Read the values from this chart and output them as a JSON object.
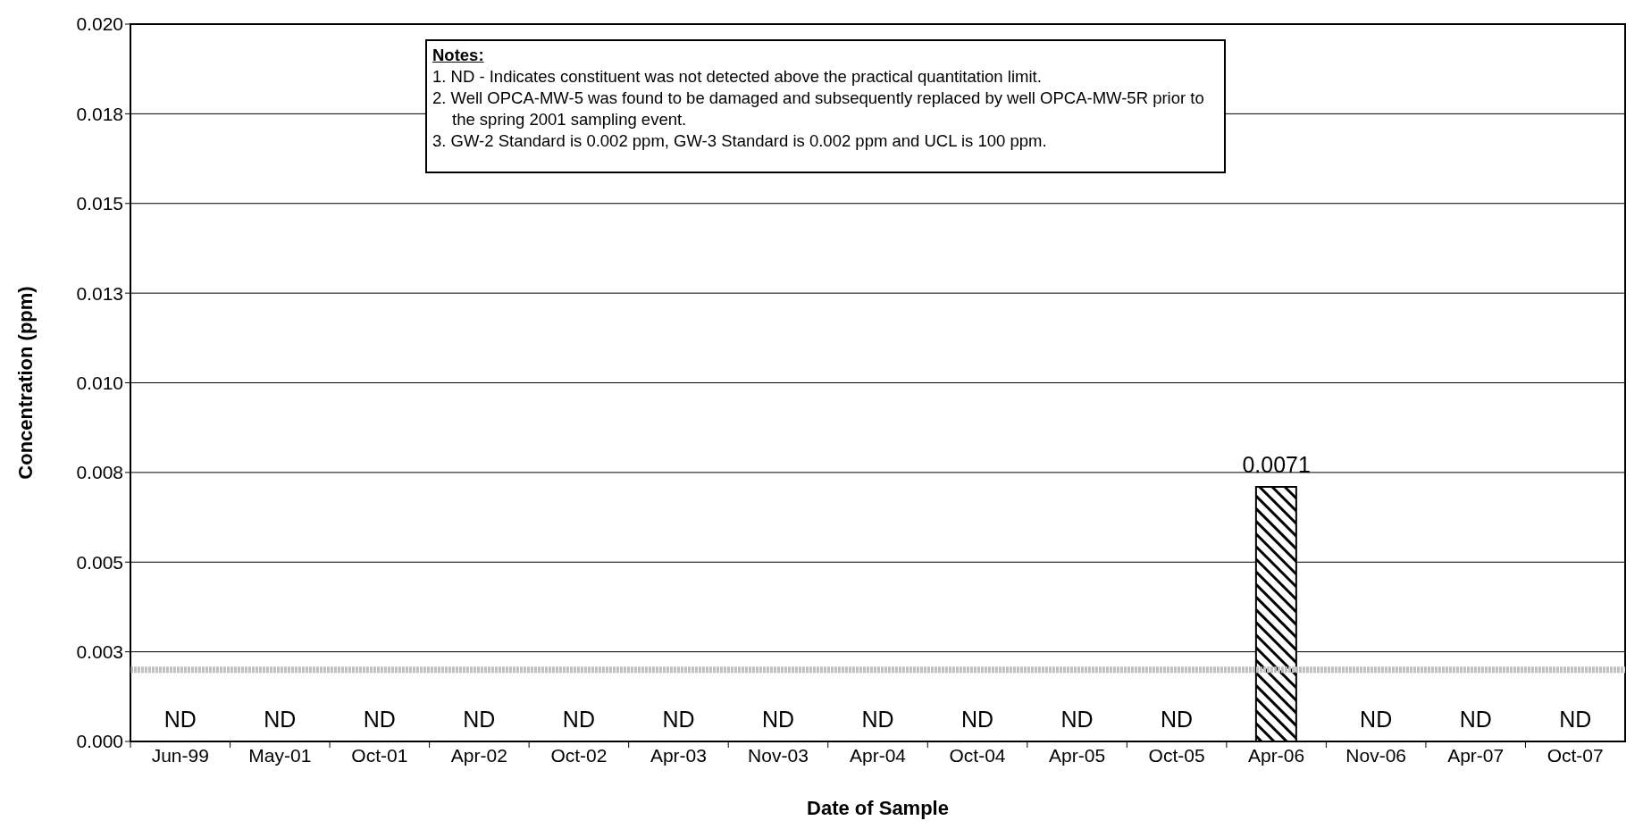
{
  "chart_data": {
    "type": "bar",
    "xlabel": "Date of Sample",
    "ylabel": "Concentration (ppm)",
    "categories": [
      "Jun-99",
      "May-01",
      "Oct-01",
      "Apr-02",
      "Oct-02",
      "Apr-03",
      "Nov-03",
      "Apr-04",
      "Oct-04",
      "Apr-05",
      "Oct-05",
      "Apr-06",
      "Nov-06",
      "Apr-07",
      "Oct-07"
    ],
    "values": [
      null,
      null,
      null,
      null,
      null,
      null,
      null,
      null,
      null,
      null,
      null,
      0.0071,
      null,
      null,
      null
    ],
    "value_labels": [
      "ND",
      "ND",
      "ND",
      "ND",
      "ND",
      "ND",
      "ND",
      "ND",
      "ND",
      "ND",
      "ND",
      "0.0071",
      "ND",
      "ND",
      "ND"
    ],
    "color": "#000000",
    "ylim": [
      0,
      0.02
    ],
    "yticks": [
      {
        "value": 0,
        "label": "0.000"
      },
      {
        "value": 0.0025,
        "label": "0.003"
      },
      {
        "value": 0.005,
        "label": "0.005"
      },
      {
        "value": 0.0075,
        "label": "0.008"
      },
      {
        "value": 0.01,
        "label": "0.010"
      },
      {
        "value": 0.0125,
        "label": "0.013"
      },
      {
        "value": 0.015,
        "label": "0.015"
      },
      {
        "value": 0.0175,
        "label": "0.018"
      },
      {
        "value": 0.02,
        "label": "0.020"
      }
    ],
    "grid": "y",
    "legend": false,
    "ref_lines": [
      {
        "axis": "y",
        "value": 0.002,
        "color": "#c0c0c0"
      }
    ],
    "annotations": [
      "Notes:",
      "1. ND - Indicates constituent was not detected above the practical quantitation limit.",
      "2. Well OPCA-MW-5 was found to be damaged and subsequently replaced by well OPCA-MW-5R prior to the spring 2001 sampling event.",
      "3. GW-2 Standard is 0.002 ppm, GW-3 Standard is 0.002 ppm and UCL is 100 ppm."
    ]
  }
}
